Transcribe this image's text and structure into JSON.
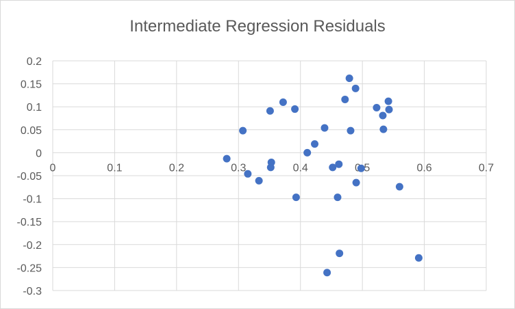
{
  "chart_data": {
    "type": "scatter",
    "title": "Intermediate Regression Residuals",
    "xlabel": "",
    "ylabel": "",
    "xlim": [
      0,
      0.7
    ],
    "ylim": [
      -0.3,
      0.2
    ],
    "x_ticks": [
      "0",
      "0.1",
      "0.2",
      "0.3",
      "0.4",
      "0.5",
      "0.6",
      "0.7"
    ],
    "y_ticks": [
      "0.2",
      "0.15",
      "0.1",
      "0.05",
      "0",
      "-0.05",
      "-0.1",
      "-0.15",
      "-0.2",
      "-0.25",
      "-0.3"
    ],
    "x_tick_values": [
      0,
      0.1,
      0.2,
      0.3,
      0.4,
      0.5,
      0.6,
      0.7
    ],
    "y_tick_values": [
      0.2,
      0.15,
      0.1,
      0.05,
      0,
      -0.05,
      -0.1,
      -0.15,
      -0.2,
      -0.25,
      -0.3
    ],
    "grid": "vertical-and-horizontal",
    "legend": "none",
    "colors": {
      "marker": "#4472C4",
      "grid": "#d9d9d9",
      "axis": "#d9d9d9",
      "text": "#595959"
    },
    "series": [
      {
        "points": [
          {
            "x": 0.281,
            "y": -0.013
          },
          {
            "x": 0.307,
            "y": 0.048
          },
          {
            "x": 0.315,
            "y": -0.046
          },
          {
            "x": 0.333,
            "y": -0.061
          },
          {
            "x": 0.351,
            "y": 0.091
          },
          {
            "x": 0.352,
            "y": -0.032
          },
          {
            "x": 0.353,
            "y": -0.021
          },
          {
            "x": 0.372,
            "y": 0.11
          },
          {
            "x": 0.391,
            "y": 0.095
          },
          {
            "x": 0.393,
            "y": -0.097
          },
          {
            "x": 0.411,
            "y": 0.0
          },
          {
            "x": 0.423,
            "y": 0.019
          },
          {
            "x": 0.439,
            "y": 0.054
          },
          {
            "x": 0.443,
            "y": -0.261
          },
          {
            "x": 0.452,
            "y": -0.032
          },
          {
            "x": 0.46,
            "y": -0.097
          },
          {
            "x": 0.462,
            "y": -0.025
          },
          {
            "x": 0.463,
            "y": -0.219
          },
          {
            "x": 0.472,
            "y": 0.116
          },
          {
            "x": 0.479,
            "y": 0.162
          },
          {
            "x": 0.481,
            "y": 0.048
          },
          {
            "x": 0.489,
            "y": 0.14
          },
          {
            "x": 0.49,
            "y": -0.065
          },
          {
            "x": 0.498,
            "y": -0.034
          },
          {
            "x": 0.523,
            "y": 0.098
          },
          {
            "x": 0.533,
            "y": 0.081
          },
          {
            "x": 0.534,
            "y": 0.051
          },
          {
            "x": 0.542,
            "y": 0.112
          },
          {
            "x": 0.543,
            "y": 0.094
          },
          {
            "x": 0.56,
            "y": -0.074
          },
          {
            "x": 0.591,
            "y": -0.229
          }
        ]
      }
    ]
  }
}
